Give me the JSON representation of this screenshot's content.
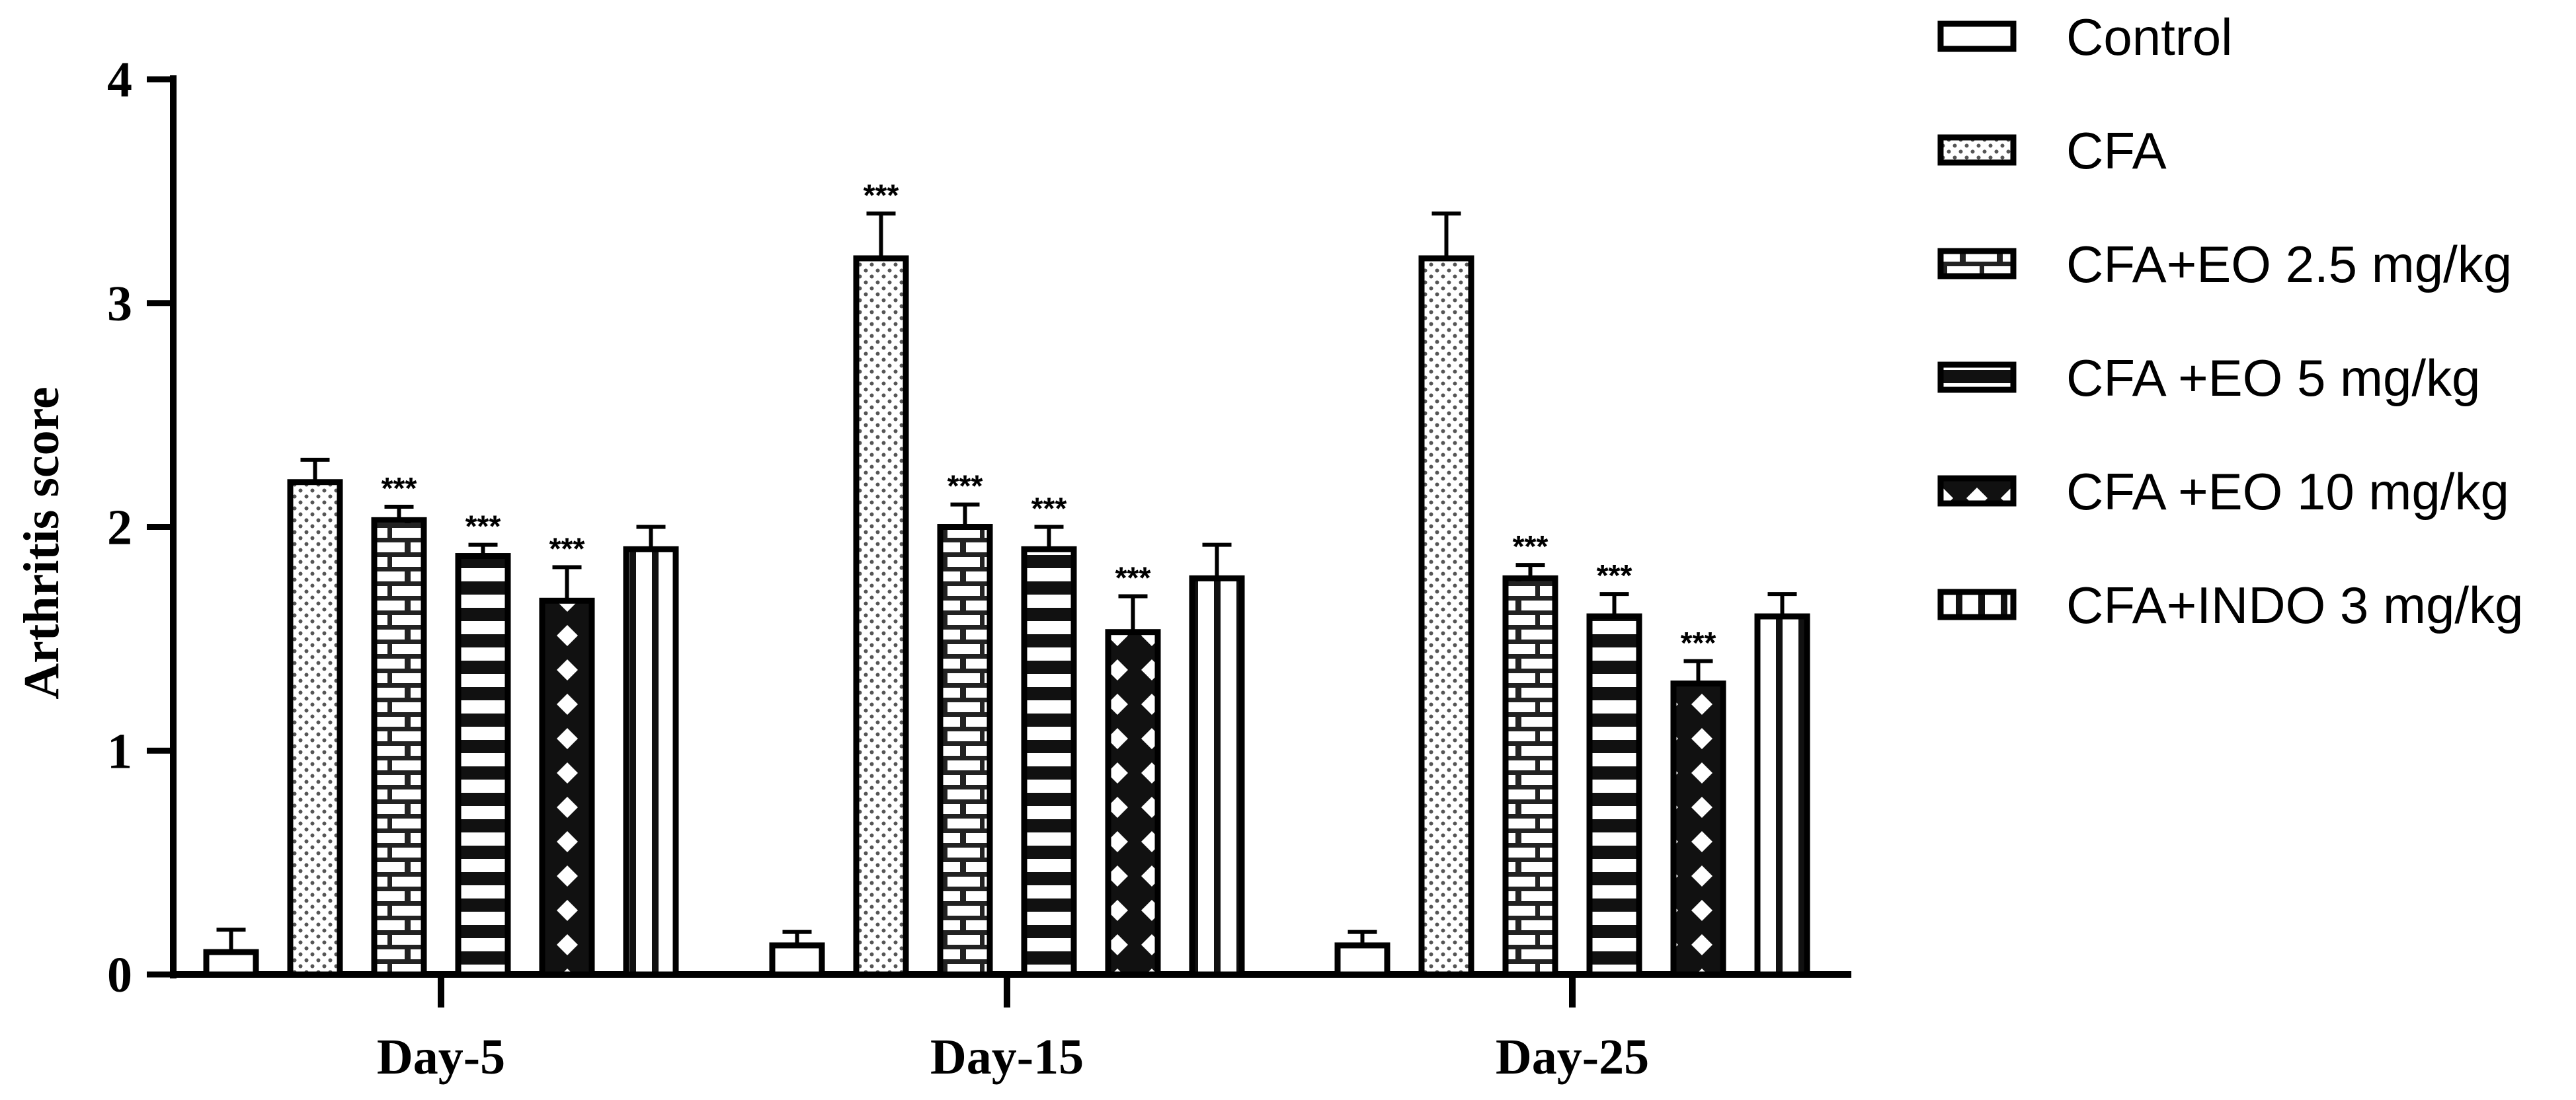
{
  "chart_data": {
    "type": "bar",
    "title": "",
    "xlabel": "",
    "ylabel": "Arthritis score",
    "ylim": [
      0,
      4
    ],
    "yticks": [
      0,
      1,
      2,
      3,
      4
    ],
    "categories": [
      "Day-5",
      "Day-15",
      "Day-25"
    ],
    "legend_position": "right",
    "series": [
      {
        "name": "Control",
        "pattern": "plain",
        "values": [
          0.1,
          0.13,
          0.13
        ],
        "errors": [
          0.1,
          0.06,
          0.06
        ],
        "significance": [
          "",
          "",
          ""
        ]
      },
      {
        "name": "CFA",
        "pattern": "dots",
        "values": [
          2.2,
          3.2,
          3.2
        ],
        "errors": [
          0.1,
          0.2,
          0.2
        ],
        "significance": [
          "",
          "***",
          ""
        ]
      },
      {
        "name": "CFA+EO 2.5 mg/kg",
        "pattern": "brick",
        "values": [
          2.03,
          2.0,
          1.77
        ],
        "errors": [
          0.06,
          0.1,
          0.06
        ],
        "significance": [
          "***",
          "***",
          "***"
        ]
      },
      {
        "name": "CFA +EO 5 mg/kg",
        "pattern": "hstripes",
        "values": [
          1.87,
          1.9,
          1.6
        ],
        "errors": [
          0.05,
          0.1,
          0.1
        ],
        "significance": [
          "***",
          "***",
          "***"
        ]
      },
      {
        "name": "CFA +EO 10 mg/kg",
        "pattern": "diamonds",
        "values": [
          1.67,
          1.53,
          1.3
        ],
        "errors": [
          0.15,
          0.16,
          0.1
        ],
        "significance": [
          "***",
          "***",
          "***"
        ]
      },
      {
        "name": "CFA+INDO 3 mg/kg",
        "pattern": "vstripes",
        "values": [
          1.9,
          1.77,
          1.6
        ],
        "errors": [
          0.1,
          0.15,
          0.1
        ],
        "significance": [
          "",
          "",
          ""
        ]
      }
    ]
  }
}
